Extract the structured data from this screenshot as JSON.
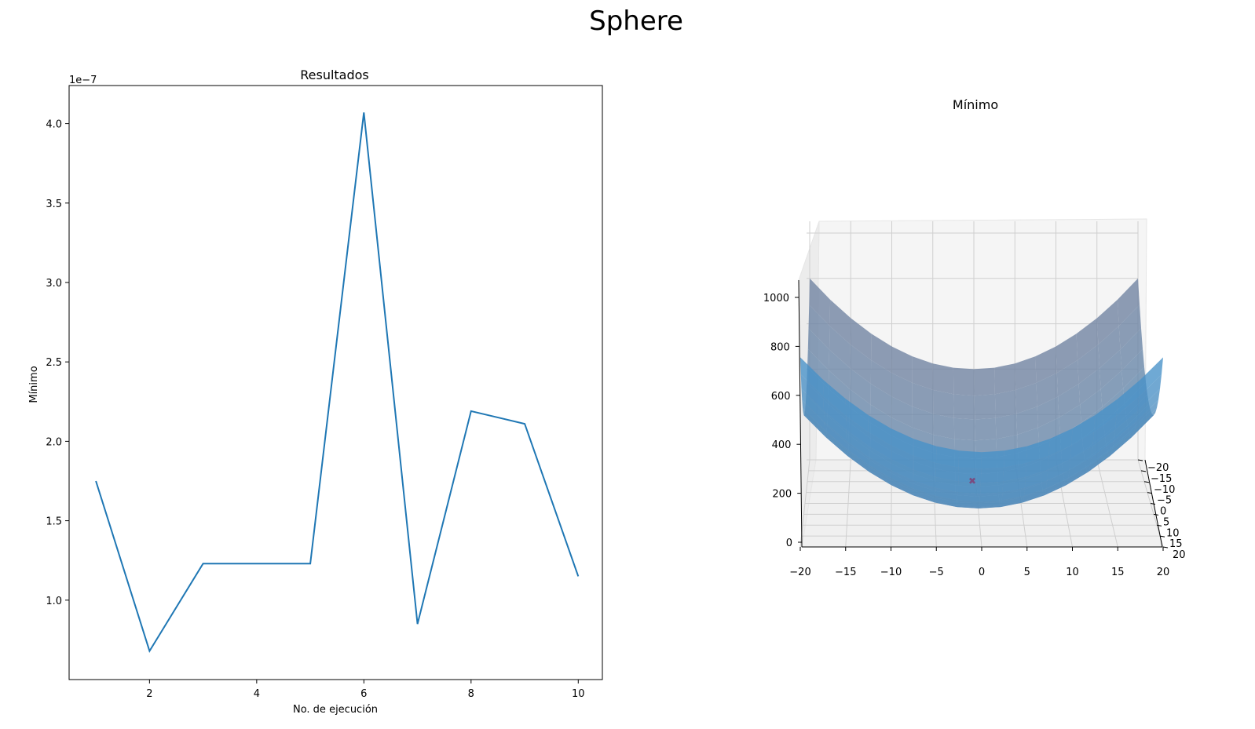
{
  "figure": {
    "suptitle": "Sphere"
  },
  "chart_data": [
    {
      "type": "line",
      "title": "Resultados",
      "xlabel": "No. de ejecución",
      "ylabel": "Mínimo",
      "y_offset_label": "1e−7",
      "x": [
        1,
        2,
        3,
        4,
        5,
        6,
        7,
        8,
        9,
        10
      ],
      "series": [
        {
          "values": [
            1.75e-07,
            6.8e-08,
            1.23e-07,
            1.23e-07,
            1.23e-07,
            4.07e-07,
            8.5e-08,
            2.19e-07,
            2.11e-07,
            1.15e-07
          ],
          "color": "#1f77b4"
        }
      ],
      "xlim": [
        0.5,
        10.45
      ],
      "ylim": [
        5e-08,
        4.24e-07
      ],
      "xticks": [
        "2",
        "4",
        "6",
        "8",
        "10"
      ],
      "yticks": [
        "1.0",
        "1.5",
        "2.0",
        "2.5",
        "3.0",
        "3.5",
        "4.0"
      ],
      "grid": false
    },
    {
      "type": "surface3d",
      "title": "Mínimo",
      "function": "x^2 + y^2",
      "x_range": [
        -20,
        20
      ],
      "y_range": [
        -20,
        20
      ],
      "z_range": [
        0,
        1100
      ],
      "minimum_marker": {
        "x": 0,
        "y": 0,
        "z": 0,
        "symbol": "x"
      },
      "xticks": [
        "−20",
        "−15",
        "−10",
        "−5",
        "0",
        "5",
        "10",
        "15",
        "20"
      ],
      "yticks": [
        "−20",
        "−15",
        "−10",
        "−5",
        "0",
        "5",
        "10",
        "15",
        "20"
      ],
      "zticks": [
        "0",
        "200",
        "400",
        "600",
        "800",
        "1000"
      ],
      "surface_color": "#4a8fc2",
      "grid": true
    }
  ]
}
